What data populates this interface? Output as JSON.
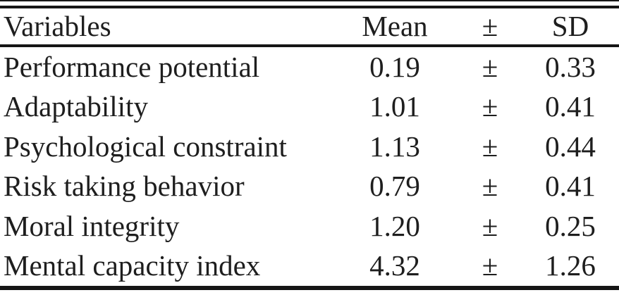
{
  "table": {
    "columns": [
      "Variables",
      "Mean",
      "±",
      "SD"
    ],
    "rows": [
      {
        "variable": "Performance potential",
        "mean": "0.19",
        "pm": "±",
        "sd": "0.33"
      },
      {
        "variable": "Adaptability",
        "mean": "1.01",
        "pm": "±",
        "sd": "0.41"
      },
      {
        "variable": "Psychological constraint",
        "mean": "1.13",
        "pm": "±",
        "sd": "0.44"
      },
      {
        "variable": "Risk taking behavior",
        "mean": "0.79",
        "pm": "±",
        "sd": "0.41"
      },
      {
        "variable": "Moral integrity",
        "mean": "1.20",
        "pm": "±",
        "sd": "0.25"
      },
      {
        "variable": "Mental capacity index",
        "mean": "4.32",
        "pm": "±",
        "sd": "1.26"
      }
    ]
  },
  "colors": {
    "text": "#1e1e1e",
    "rule": "#151515",
    "background": "#ffffff"
  },
  "chart_data": {
    "type": "table",
    "title": "",
    "columns": [
      "Variables",
      "Mean",
      "±",
      "SD"
    ],
    "categories": [
      "Performance potential",
      "Adaptability",
      "Psychological constraint",
      "Risk taking behavior",
      "Moral integrity",
      "Mental capacity index"
    ],
    "series": [
      {
        "name": "Mean",
        "values": [
          0.19,
          1.01,
          1.13,
          0.79,
          1.2,
          4.32
        ]
      },
      {
        "name": "SD",
        "values": [
          0.33,
          0.41,
          0.44,
          0.41,
          0.25,
          1.26
        ]
      }
    ]
  }
}
